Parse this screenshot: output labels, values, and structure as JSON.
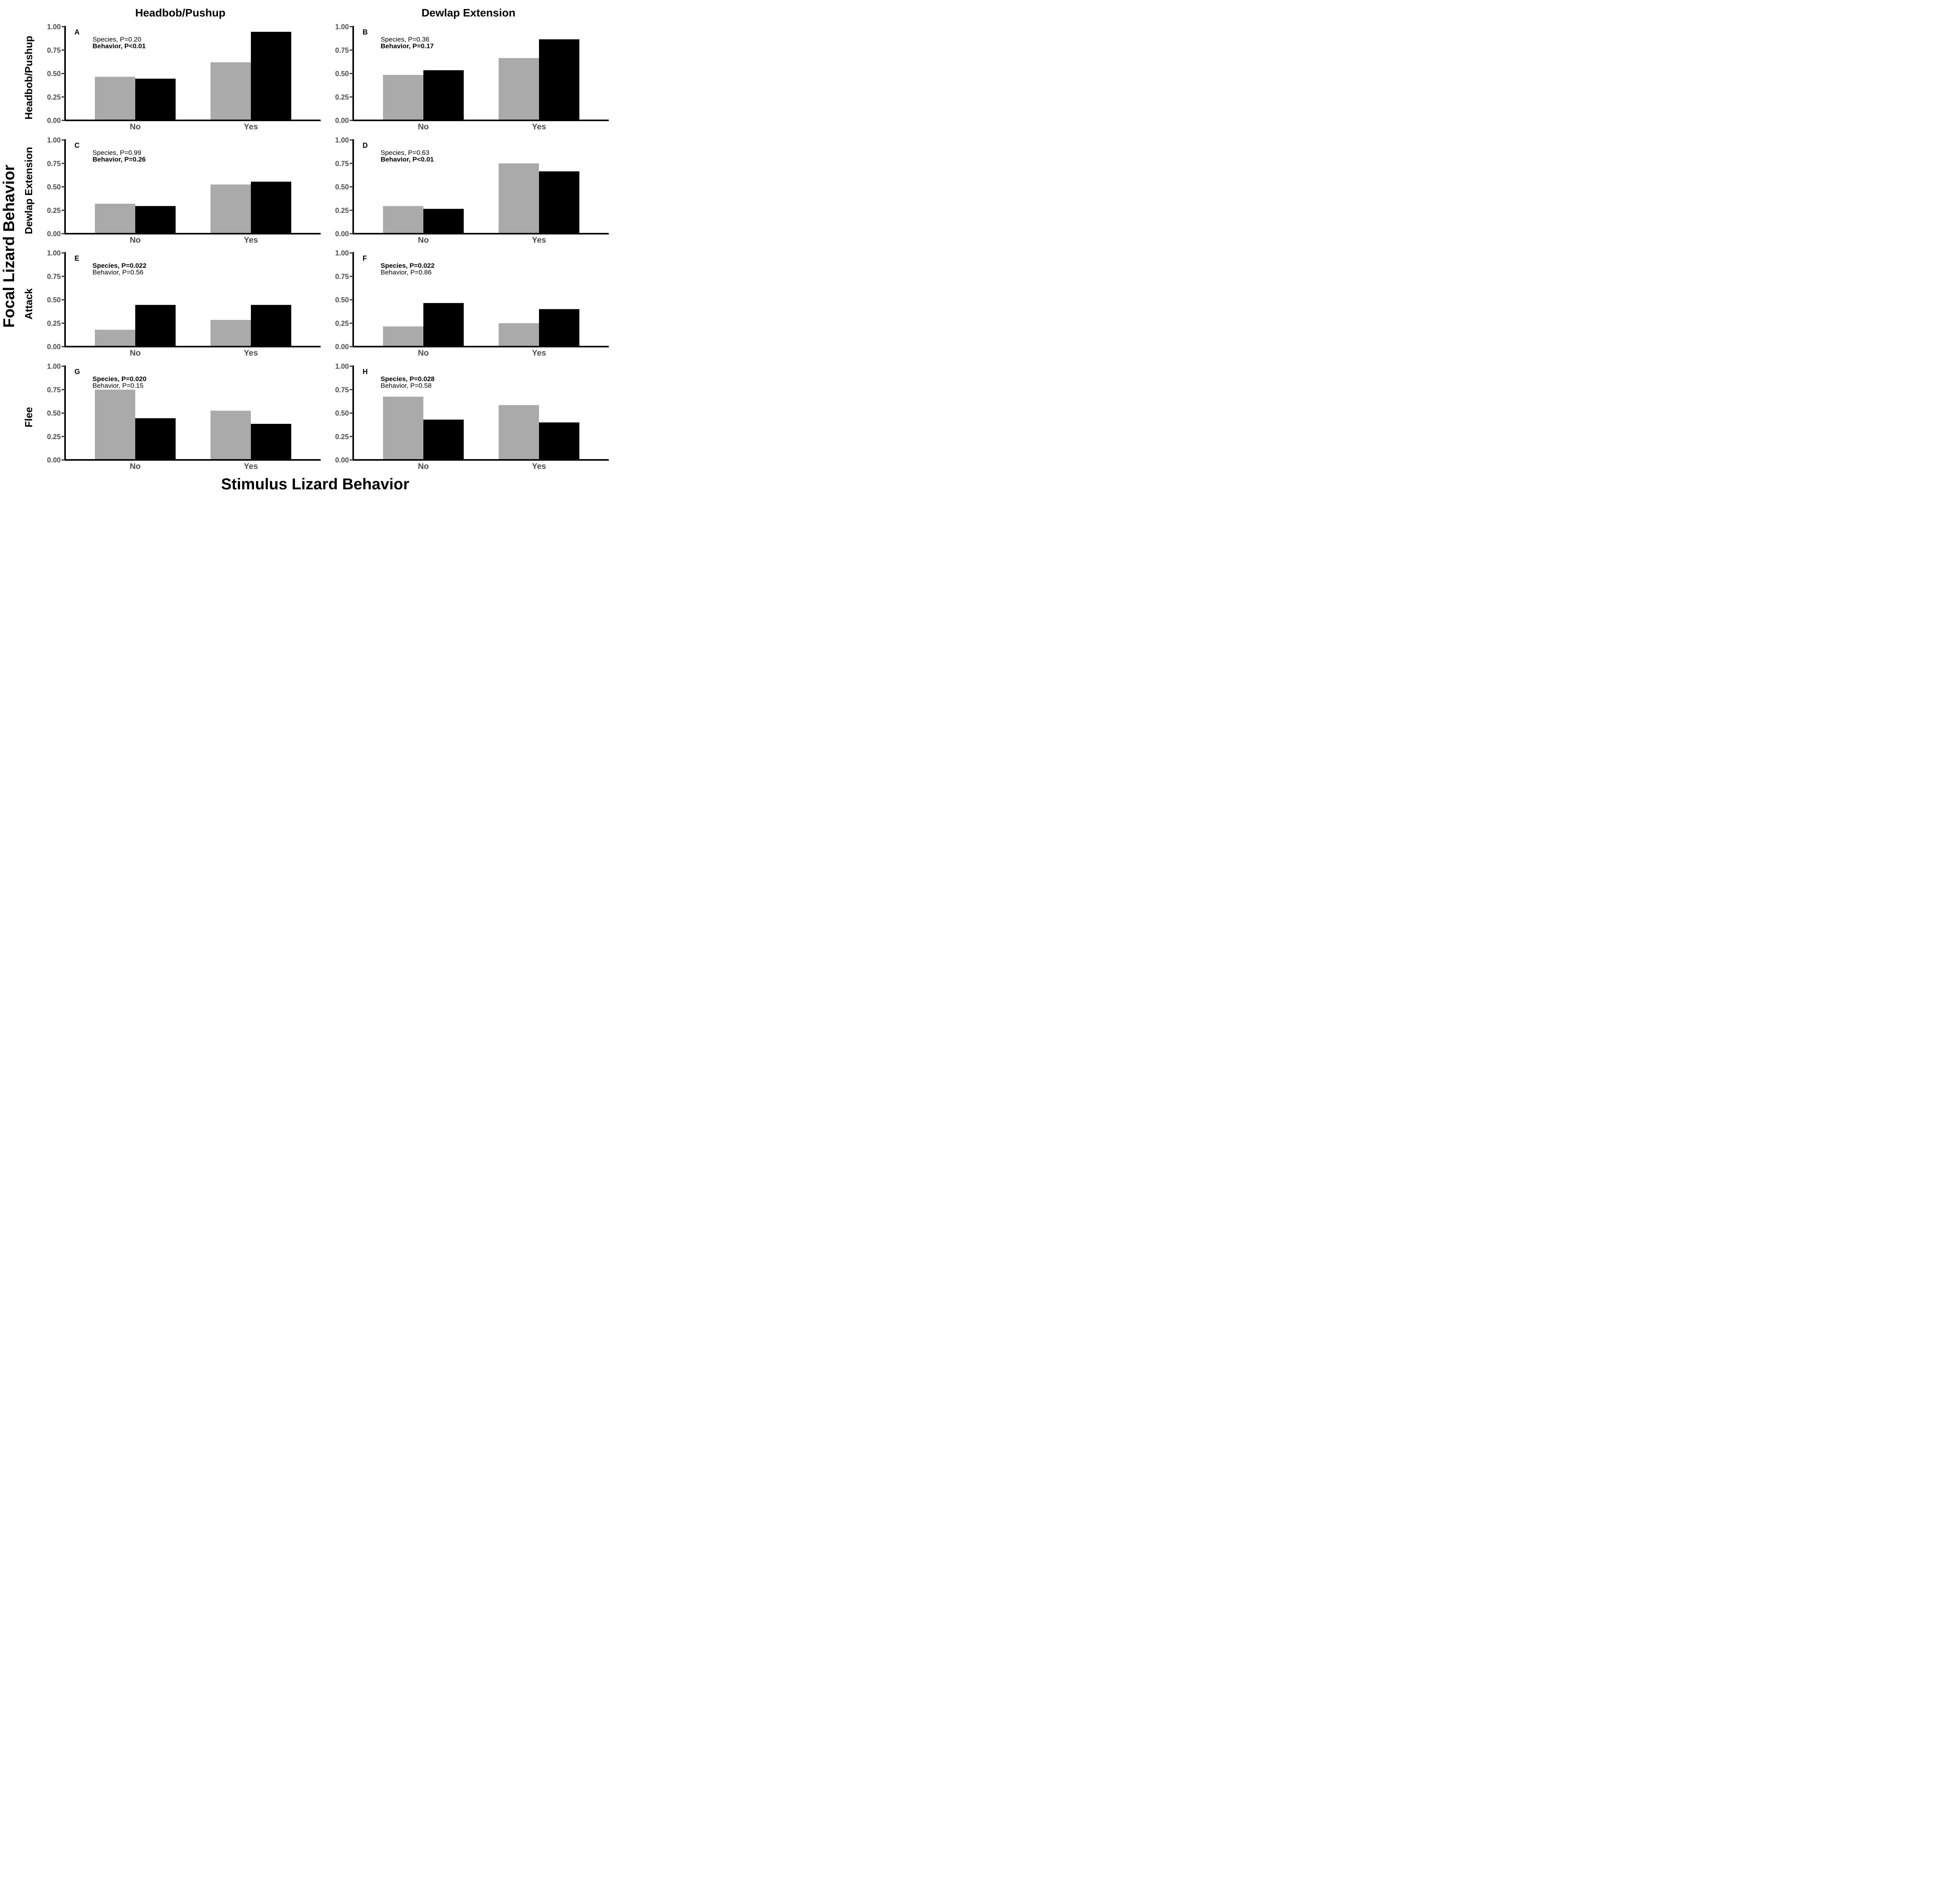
{
  "figure": {
    "y_title": "Focal Lizard Behavior",
    "x_title": "Stimulus Lizard Behavior",
    "col_titles": [
      "Headbob/Pushup",
      "Dewlap Extension"
    ],
    "row_titles": [
      "Headbob/Pushup",
      "Dewlap Extension",
      "Attack",
      "Flee"
    ],
    "colors": {
      "gray": "#aaaaaa",
      "black": "#000000",
      "axis": "#000000",
      "tick_text": "#4d4d4d"
    }
  },
  "chart_data": [
    {
      "type": "bar",
      "panel": "A",
      "categories": [
        "No",
        "Yes"
      ],
      "series": [
        {
          "values": [
            0.465,
            0.62
          ]
        },
        {
          "values": [
            0.445,
            0.945
          ]
        }
      ],
      "ylim": [
        0,
        1
      ],
      "yticks": [
        "0.00",
        "0.25",
        "0.50",
        "0.75",
        "1.00"
      ],
      "annotations": [
        {
          "text": "Species, P=0.20",
          "bold": false
        },
        {
          "text": "Behavior, P<0.01",
          "bold": true
        }
      ]
    },
    {
      "type": "bar",
      "panel": "B",
      "categories": [
        "No",
        "Yes"
      ],
      "series": [
        {
          "values": [
            0.485,
            0.665
          ]
        },
        {
          "values": [
            0.535,
            0.865
          ]
        }
      ],
      "ylim": [
        0,
        1
      ],
      "yticks": [
        "0.00",
        "0.25",
        "0.50",
        "0.75",
        "1.00"
      ],
      "annotations": [
        {
          "text": "Species, P=0.36",
          "bold": false
        },
        {
          "text": "Behavior, P=0.17",
          "bold": true
        }
      ]
    },
    {
      "type": "bar",
      "panel": "C",
      "categories": [
        "No",
        "Yes"
      ],
      "series": [
        {
          "values": [
            0.32,
            0.525
          ]
        },
        {
          "values": [
            0.295,
            0.555
          ]
        }
      ],
      "ylim": [
        0,
        1
      ],
      "yticks": [
        "0.00",
        "0.25",
        "0.50",
        "0.75",
        "1.00"
      ],
      "annotations": [
        {
          "text": "Species, P=0.99",
          "bold": false
        },
        {
          "text": "Behavior, P=0.26",
          "bold": true
        }
      ]
    },
    {
      "type": "bar",
      "panel": "D",
      "categories": [
        "No",
        "Yes"
      ],
      "series": [
        {
          "values": [
            0.295,
            0.75
          ]
        },
        {
          "values": [
            0.265,
            0.665
          ]
        }
      ],
      "ylim": [
        0,
        1
      ],
      "yticks": [
        "0.00",
        "0.25",
        "0.50",
        "0.75",
        "1.00"
      ],
      "annotations": [
        {
          "text": "Species, P=0.63",
          "bold": false
        },
        {
          "text": "Behavior, P<0.01",
          "bold": true
        }
      ]
    },
    {
      "type": "bar",
      "panel": "E",
      "categories": [
        "No",
        "Yes"
      ],
      "series": [
        {
          "values": [
            0.18,
            0.285
          ]
        },
        {
          "values": [
            0.445,
            0.445
          ]
        }
      ],
      "ylim": [
        0,
        1
      ],
      "yticks": [
        "0.00",
        "0.25",
        "0.50",
        "0.75",
        "1.00"
      ],
      "annotations": [
        {
          "text": "Species, P=0.022",
          "bold": true
        },
        {
          "text": "Behavior, P=0.56",
          "bold": false
        }
      ]
    },
    {
      "type": "bar",
      "panel": "F",
      "categories": [
        "No",
        "Yes"
      ],
      "series": [
        {
          "values": [
            0.215,
            0.25
          ]
        },
        {
          "values": [
            0.465,
            0.4
          ]
        }
      ],
      "ylim": [
        0,
        1
      ],
      "yticks": [
        "0.00",
        "0.25",
        "0.50",
        "0.75",
        "1.00"
      ],
      "annotations": [
        {
          "text": "Species, P=0.022",
          "bold": true
        },
        {
          "text": "Behavior, P=0.86",
          "bold": false
        }
      ]
    },
    {
      "type": "bar",
      "panel": "G",
      "categories": [
        "No",
        "Yes"
      ],
      "series": [
        {
          "values": [
            0.75,
            0.525
          ]
        },
        {
          "values": [
            0.445,
            0.385
          ]
        }
      ],
      "ylim": [
        0,
        1
      ],
      "yticks": [
        "0.00",
        "0.25",
        "0.50",
        "0.75",
        "1.00"
      ],
      "annotations": [
        {
          "text": "Species, P=0.020",
          "bold": true
        },
        {
          "text": "Behavior, P=0.15",
          "bold": false
        }
      ]
    },
    {
      "type": "bar",
      "panel": "H",
      "categories": [
        "No",
        "Yes"
      ],
      "series": [
        {
          "values": [
            0.675,
            0.585
          ]
        },
        {
          "values": [
            0.43,
            0.4
          ]
        }
      ],
      "ylim": [
        0,
        1
      ],
      "yticks": [
        "0.00",
        "0.25",
        "0.50",
        "0.75",
        "1.00"
      ],
      "annotations": [
        {
          "text": "Species, P=0.028",
          "bold": true
        },
        {
          "text": "Behavior, P=0.58",
          "bold": false
        }
      ]
    }
  ]
}
